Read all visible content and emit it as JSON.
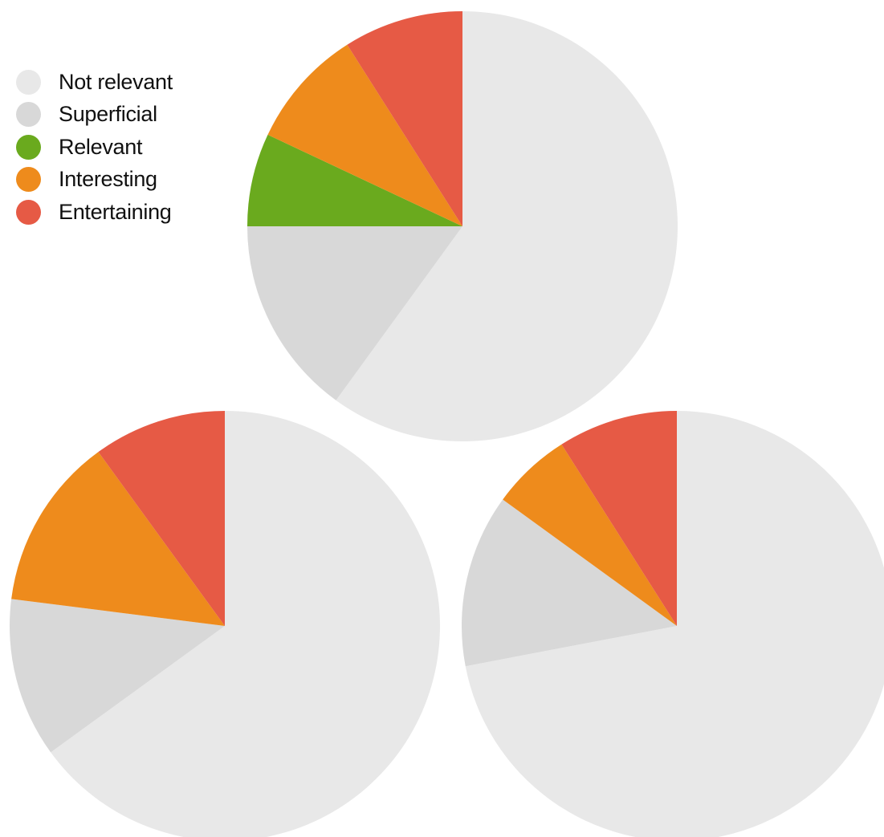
{
  "chart_data": [
    {
      "type": "pie",
      "categories": [
        "Not relevant",
        "Superficial",
        "Relevant",
        "Interesting",
        "Entertaining"
      ],
      "values": [
        60,
        15,
        7,
        9,
        9
      ],
      "colors": [
        "#e8e8e8",
        "#d8d8d8",
        "#6aaa1e",
        "#ee8b1c",
        "#e65a45"
      ],
      "start_angle": "top",
      "direction": "clockwise"
    },
    {
      "type": "pie",
      "categories": [
        "Not relevant",
        "Superficial",
        "Relevant",
        "Interesting",
        "Entertaining"
      ],
      "values": [
        65,
        12,
        0,
        13,
        10
      ],
      "colors": [
        "#e8e8e8",
        "#d8d8d8",
        "#6aaa1e",
        "#ee8b1c",
        "#e65a45"
      ],
      "start_angle": "top",
      "direction": "clockwise"
    },
    {
      "type": "pie",
      "categories": [
        "Not relevant",
        "Superficial",
        "Relevant",
        "Interesting",
        "Entertaining"
      ],
      "values": [
        72,
        13,
        0,
        6,
        9
      ],
      "colors": [
        "#e8e8e8",
        "#d8d8d8",
        "#6aaa1e",
        "#ee8b1c",
        "#e65a45"
      ],
      "start_angle": "top",
      "direction": "clockwise"
    }
  ],
  "legend": {
    "items": [
      {
        "label": "Not relevant",
        "color": "#e8e8e8"
      },
      {
        "label": "Superficial",
        "color": "#d8d8d8"
      },
      {
        "label": "Relevant",
        "color": "#6aaa1e"
      },
      {
        "label": "Interesting",
        "color": "#ee8b1c"
      },
      {
        "label": "Entertaining",
        "color": "#e65a45"
      }
    ],
    "placement": "top-left"
  }
}
